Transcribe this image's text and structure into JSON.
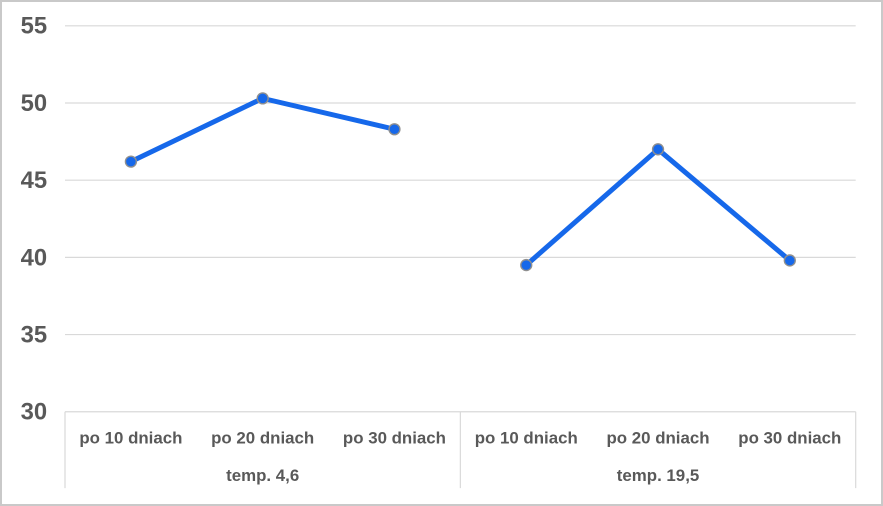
{
  "chart_data": {
    "type": "line",
    "title": "",
    "xlabel": "",
    "ylabel": "",
    "legend": "none",
    "grid": true,
    "y_axis": {
      "min": 30,
      "max": 55,
      "step": 5,
      "ticks": [
        55,
        50,
        45,
        40,
        35,
        30
      ]
    },
    "groups": [
      {
        "label": "temp. 4,6",
        "categories": [
          "po 10 dniach",
          "po 20 dniach",
          "po 30 dniach"
        ],
        "values": [
          46.2,
          50.3,
          48.3
        ]
      },
      {
        "label": "temp. 19,5",
        "categories": [
          "po 10 dniach",
          "po 20 dniach",
          "po 30 dniach"
        ],
        "values": [
          39.5,
          47.0,
          39.8
        ]
      }
    ],
    "colors": {
      "series_line": "#1668ea",
      "marker_fill": "#1668ea",
      "marker_outline": "#8f8f8f",
      "gridline": "#d9d9d9",
      "axis_divider": "#d9d9d9",
      "label_text": "#595959",
      "frame_border": "#c9c9c9",
      "background": "#ffffff"
    }
  }
}
